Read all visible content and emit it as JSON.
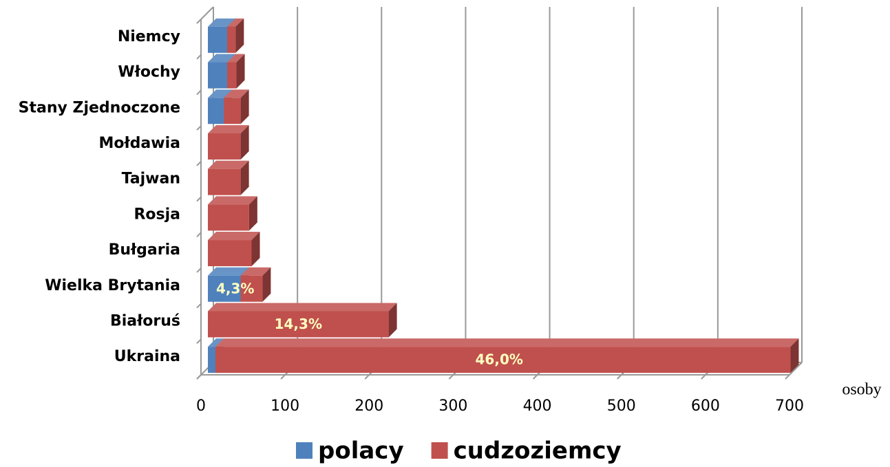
{
  "chart_data": {
    "type": "bar3d_stacked_horizontal",
    "categories": [
      "Niemcy",
      "Włochy",
      "Stany Zjednoczone",
      "Mołdawia",
      "Tajwan",
      "Rosja",
      "Bułgaria",
      "Wielka Brytania",
      "Białoruś",
      "Ukraina"
    ],
    "series": [
      {
        "name": "polacy",
        "color": "#4f81bd",
        "values": [
          23,
          23,
          19,
          0,
          0,
          0,
          0,
          39,
          0,
          9
        ]
      },
      {
        "name": "cudzoziemcy",
        "color": "#c0504d",
        "values": [
          10,
          11,
          20,
          39,
          39,
          49,
          52,
          26,
          215,
          684
        ]
      }
    ],
    "percent_labels": [
      null,
      null,
      null,
      null,
      null,
      null,
      null,
      "4,3%",
      "14,3%",
      "46,0%"
    ],
    "xlim": [
      0,
      700
    ],
    "xticks": [
      0,
      100,
      200,
      300,
      400,
      500,
      600,
      700
    ],
    "x_axis_label": "osoby",
    "grid": true,
    "legend": "bottom"
  }
}
